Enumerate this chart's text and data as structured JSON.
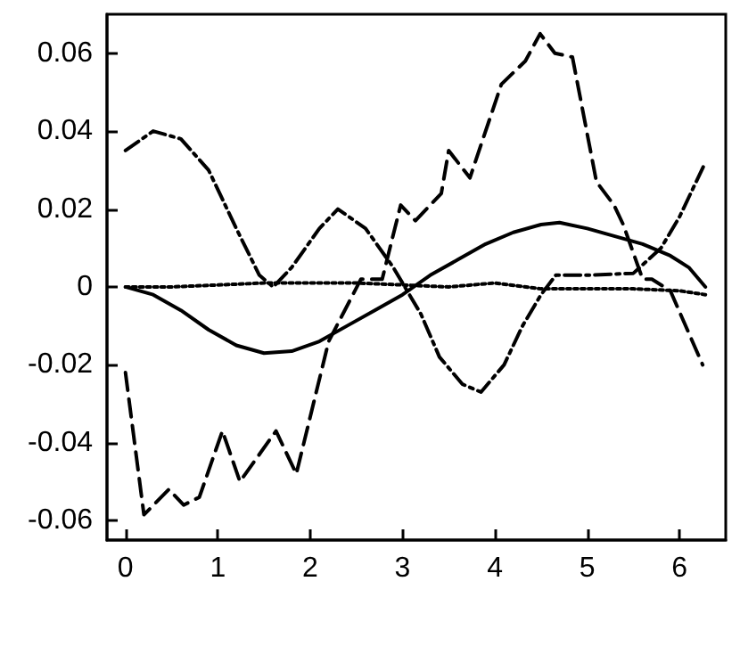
{
  "chart_data": {
    "type": "line",
    "xlim": [
      -0.2,
      6.5
    ],
    "ylim": [
      -0.065,
      0.07
    ],
    "xticks": [
      0,
      1,
      2,
      3,
      4,
      5,
      6
    ],
    "yticks": [
      {
        "value": -0.06,
        "label": "-0.06"
      },
      {
        "value": -0.04,
        "label": "-0.04"
      },
      {
        "value": -0.02,
        "label": "-0.02"
      },
      0,
      {
        "value": 0.02,
        "label": "0.02"
      },
      {
        "value": 0.04,
        "label": "0.04"
      },
      {
        "value": 0.06,
        "label": "0.06"
      }
    ],
    "marker": "none",
    "series": [
      {
        "color": "#000000",
        "line_style": "solid",
        "x": [
          0,
          0.3,
          0.6,
          0.9,
          1.2,
          1.5,
          1.8,
          2.1,
          2.4,
          2.7,
          3.0,
          3.3,
          3.6,
          3.9,
          4.2,
          4.5,
          4.7,
          5.0,
          5.3,
          5.6,
          5.9,
          6.1,
          6.28
        ],
        "values": [
          0,
          -0.002,
          -0.006,
          -0.011,
          -0.015,
          -0.017,
          -0.0165,
          -0.014,
          -0.01,
          -0.006,
          -0.002,
          0.003,
          0.007,
          0.011,
          0.014,
          0.016,
          0.0165,
          0.015,
          0.013,
          0.011,
          0.008,
          0.005,
          0
        ]
      },
      {
        "color": "#000000",
        "line_style": "dotted",
        "x": [
          0,
          0.5,
          1,
          1.5,
          2,
          2.5,
          3,
          3.5,
          4,
          4.5,
          5,
          5.5,
          6,
          6.28
        ],
        "values": [
          0,
          0,
          0.0005,
          0.001,
          0.001,
          0.001,
          0.0005,
          0,
          0.001,
          -0.0005,
          -0.0005,
          -0.0005,
          -0.001,
          -0.002
        ]
      },
      {
        "color": "#000000",
        "line_style": "dashdot",
        "x": [
          0,
          0.3,
          0.6,
          0.9,
          1.2,
          1.45,
          1.6,
          1.8,
          2.1,
          2.3,
          2.6,
          2.9,
          3.2,
          3.4,
          3.65,
          3.85,
          4.1,
          4.3,
          4.5,
          4.66,
          5.0,
          5.5,
          5.8,
          6.0,
          6.28
        ],
        "values": [
          0.035,
          0.04,
          0.038,
          0.03,
          0.015,
          0.003,
          0,
          0.005,
          0.015,
          0.02,
          0.015,
          0.005,
          -0.007,
          -0.018,
          -0.025,
          -0.027,
          -0.02,
          -0.01,
          -0.002,
          0.003,
          0.003,
          0.0035,
          0.01,
          0.018,
          0.032
        ]
      },
      {
        "color": "#000000",
        "line_style": "dashed",
        "x": [
          0,
          0.2,
          0.47,
          0.63,
          0.8,
          1.05,
          1.24,
          1.63,
          1.85,
          2.2,
          2.55,
          2.78,
          2.98,
          3.14,
          3.42,
          3.5,
          3.73,
          4.07,
          4.2,
          4.33,
          4.49,
          4.65,
          4.84,
          5.1,
          5.29,
          5.39,
          5.6,
          5.7,
          5.9,
          6.25
        ],
        "values": [
          -0.022,
          -0.0585,
          -0.052,
          -0.056,
          -0.054,
          -0.037,
          -0.05,
          -0.037,
          -0.048,
          -0.014,
          0.002,
          0.002,
          0.021,
          0.017,
          0.024,
          0.035,
          0.028,
          0.052,
          0.055,
          0.058,
          0.065,
          0.06,
          0.059,
          0.027,
          0.021,
          0.016,
          0.002,
          0.002,
          -0.001,
          -0.02
        ]
      }
    ]
  }
}
